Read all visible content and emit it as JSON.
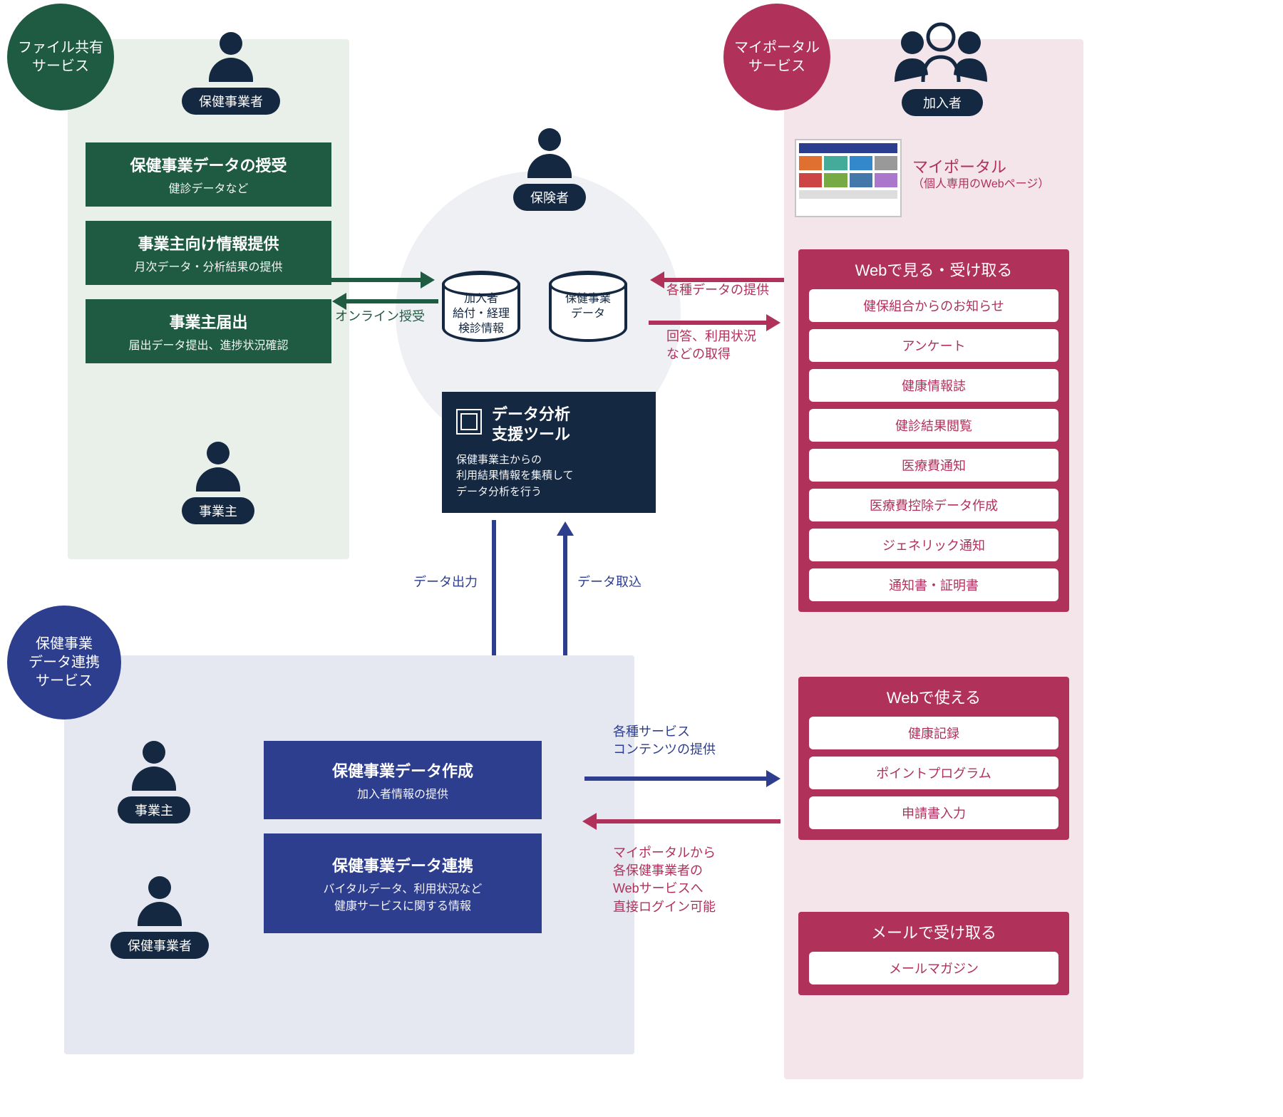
{
  "colors": {
    "green_dark": "#1f5a43",
    "green_bg": "#e8f0e9",
    "navy": "#152841",
    "navy_bg": "#e3e7ee",
    "blue": "#2e3e8f",
    "blue_bg": "#e6e8f1",
    "magenta": "#b0315a",
    "magenta_bg": "#f3e5ea",
    "gray_bg": "#eef0f3"
  },
  "badges": {
    "file_share": "ファイル共有\nサービス",
    "myportal": "マイポータル\nサービス",
    "data_link": "保健事業\nデータ連携\nサービス"
  },
  "actors": {
    "provider": "保健事業者",
    "employer": "事業主",
    "insurer": "保険者",
    "member": "加入者"
  },
  "green_boxes": [
    {
      "t1": "保健事業データの授受",
      "t2": "健診データなど"
    },
    {
      "t1": "事業主向け情報提供",
      "t2": "月次データ・分析結果の提供"
    },
    {
      "t1": "事業主届出",
      "t2": "届出データ提出、進捗状況確認"
    }
  ],
  "center": {
    "db1": "加入者\n給付・経理\n検診情報",
    "db2": "保健事業\nデータ",
    "tool_title": "データ分析\n支援ツール",
    "tool_desc": "保健事業主からの\n利用結果情報を集積して\nデータ分析を行う"
  },
  "blue_boxes": [
    {
      "t1": "保健事業データ作成",
      "t2": "加入者情報の提供"
    },
    {
      "t1": "保健事業データ連携",
      "t2": "バイタルデータ、利用状況など\n健康サービスに関する情報"
    }
  ],
  "portal": {
    "title": "マイポータル",
    "sub": "（個人専用のWebページ）",
    "sec1": "Webで見る・受け取る",
    "sec1_items": [
      "健保組合からのお知らせ",
      "アンケート",
      "健康情報誌",
      "健診結果閲覧",
      "医療費通知",
      "医療費控除データ作成",
      "ジェネリック通知",
      "通知書・証明書"
    ],
    "sec2": "Webで使える",
    "sec2_items": [
      "健康記録",
      "ポイントプログラム",
      "申請書入力"
    ],
    "sec3": "メールで受け取る",
    "sec3_items": [
      "メールマガジン"
    ]
  },
  "arrows": {
    "online": "オンライン授受",
    "provide_data": "各種データの提供",
    "get_response": "回答、利用状況\nなどの取得",
    "data_out": "データ出力",
    "data_in": "データ取込",
    "service_content": "各種サービス\nコンテンツの提供",
    "direct_login": "マイポータルから\n各保健事業者の\nWebサービスへ\n直接ログイン可能"
  }
}
